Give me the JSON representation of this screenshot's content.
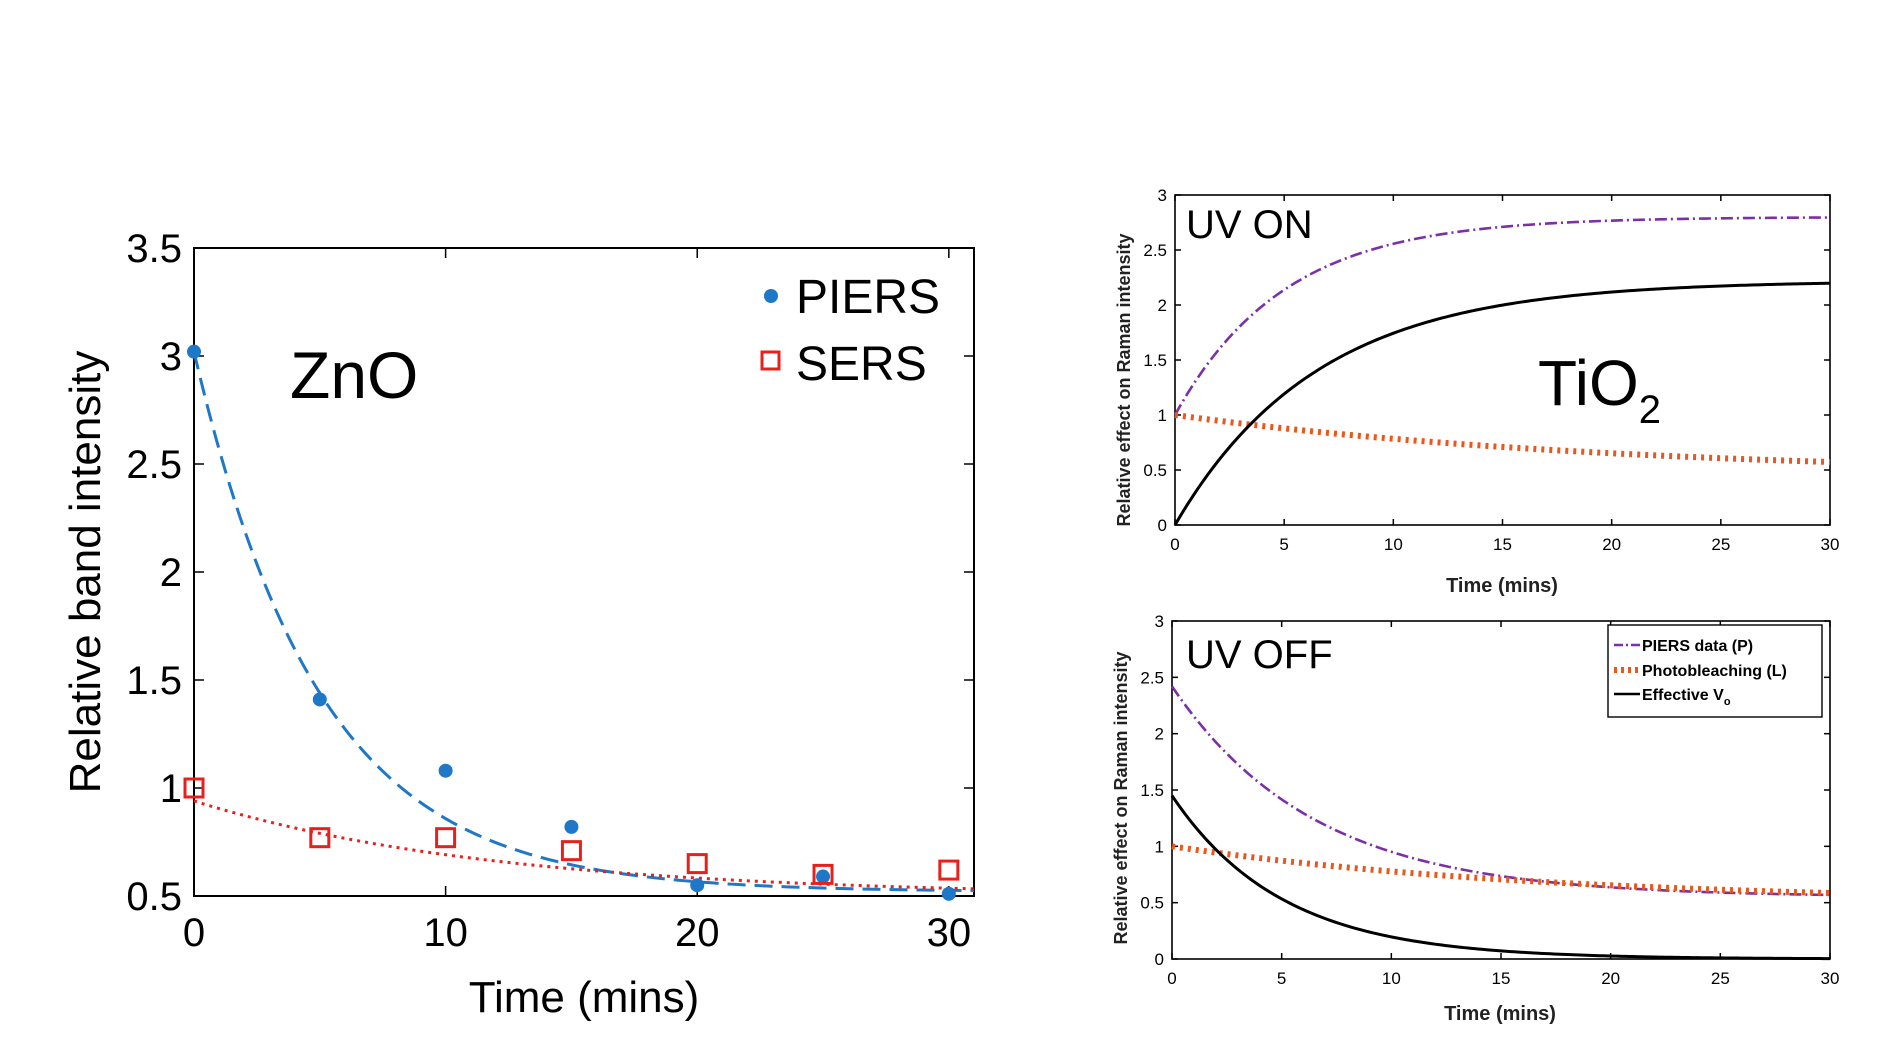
{
  "chart_data": [
    {
      "type": "scatter",
      "title": "",
      "annotation": "ZnO",
      "xlabel": "Time (mins)",
      "ylabel": "Relative band intensity",
      "xlim": [
        0,
        31
      ],
      "ylim": [
        0.5,
        3.5
      ],
      "xticks": [
        "0",
        "10",
        "20",
        "30"
      ],
      "yticks": [
        "0.5",
        "1",
        "1.5",
        "2",
        "2.5",
        "3",
        "3.5"
      ],
      "legend_position": "top-right",
      "series": [
        {
          "name": "PIERS",
          "marker": "dot",
          "color": "#1f77c8",
          "x": [
            0,
            5,
            10,
            15,
            20,
            25,
            30
          ],
          "y": [
            3.02,
            1.41,
            1.08,
            0.82,
            0.55,
            0.59,
            0.51
          ],
          "fit": {
            "style": "dashed",
            "amplitude": 2.5,
            "tau": 5.0,
            "offset": 0.52
          }
        },
        {
          "name": "SERS",
          "marker": "open-square",
          "color": "#e8201c",
          "x": [
            0,
            5,
            10,
            15,
            20,
            25,
            30
          ],
          "y": [
            1.0,
            0.77,
            0.77,
            0.71,
            0.65,
            0.6,
            0.62
          ],
          "fit": {
            "style": "dotted",
            "amplitude": 0.44,
            "tau": 12.0,
            "offset": 0.5
          }
        }
      ]
    },
    {
      "type": "line",
      "title": "",
      "annotation": "UV ON",
      "annotation2": "TiO",
      "annotation2_sub": "2",
      "xlabel": "Time (mins)",
      "ylabel": "Relative effect on Raman intensity",
      "xlim": [
        0,
        30
      ],
      "ylim": [
        0,
        3
      ],
      "xticks": [
        "0",
        "5",
        "10",
        "15",
        "20",
        "25",
        "30"
      ],
      "yticks": [
        "0",
        "0.5",
        "1",
        "1.5",
        "2",
        "2.5",
        "3"
      ],
      "series": [
        {
          "style": "dashdot",
          "color": "#7b2fa8",
          "start": 1.0,
          "end": 2.8,
          "tau": 5.0
        },
        {
          "style": "dotted",
          "color": "#e8571c",
          "start": 1.0,
          "end": 0.45,
          "tau": 20.0
        },
        {
          "style": "solid",
          "color": "#000000",
          "start": 0.0,
          "end": 2.22,
          "tau": 6.5
        }
      ]
    },
    {
      "type": "line",
      "title": "",
      "annotation": "UV OFF",
      "xlabel": "Time (mins)",
      "ylabel": "Relative effect on Raman intensity",
      "xlim": [
        0,
        30
      ],
      "ylim": [
        0,
        3
      ],
      "xticks": [
        "0",
        "5",
        "10",
        "15",
        "20",
        "25",
        "30"
      ],
      "yticks": [
        "0",
        "0.5",
        "1",
        "1.5",
        "2",
        "2.5",
        "3"
      ],
      "legend_position": "top-right",
      "legend": [
        {
          "label": "PIERS data (P)",
          "style": "dashdot",
          "color": "#7b2fa8"
        },
        {
          "label": "Photobleaching (L)",
          "style": "dotted",
          "color": "#e8571c"
        },
        {
          "label": "Effective V",
          "sub": "o",
          "style": "solid",
          "color": "#000000"
        }
      ],
      "series": [
        {
          "style": "dashdot",
          "color": "#7b2fa8",
          "start": 2.42,
          "end": 0.55,
          "tau": 6.5
        },
        {
          "style": "dotted",
          "color": "#e8571c",
          "start": 1.0,
          "end": 0.5,
          "tau": 17.0
        },
        {
          "style": "solid",
          "color": "#000000",
          "start": 1.45,
          "end": 0.0,
          "tau": 5.0
        }
      ]
    }
  ]
}
